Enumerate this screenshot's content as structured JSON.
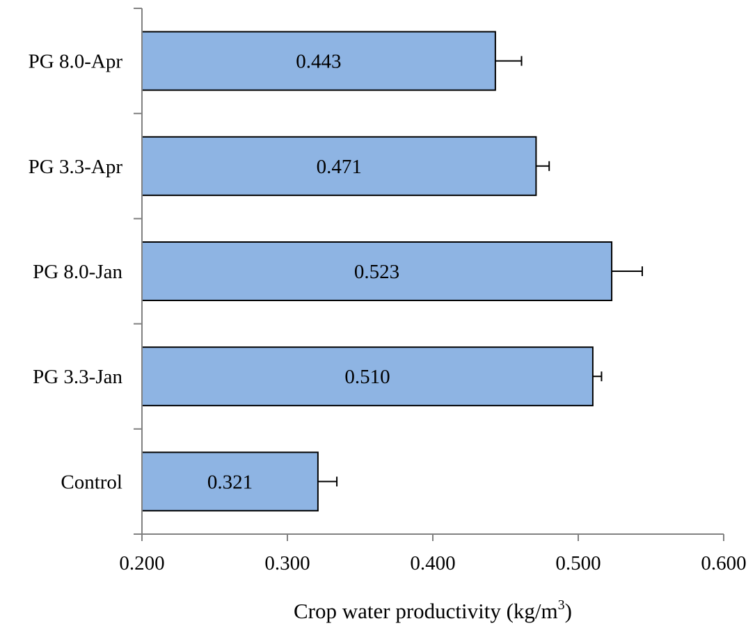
{
  "chart_data": {
    "type": "bar",
    "orientation": "horizontal",
    "title": "",
    "categories": [
      "Control",
      "PG 3.3-Jan",
      "PG 8.0-Jan",
      "PG 3.3-Apr",
      "PG 8.0-Apr"
    ],
    "values": [
      0.321,
      0.51,
      0.523,
      0.471,
      0.443
    ],
    "value_labels": [
      "0.321",
      "0.510",
      "0.523",
      "0.471",
      "0.443"
    ],
    "error_bars": [
      0.013,
      0.006,
      0.021,
      0.009,
      0.018
    ],
    "xlabel": "Crop water productivity (kg/m",
    "xlabel_superscript": "3",
    "xlabel_suffix": ")",
    "ylabel": "",
    "xlim": [
      0.2,
      0.6
    ],
    "xticks": [
      0.2,
      0.3,
      0.4,
      0.5,
      0.6
    ],
    "xtick_labels": [
      "0.200",
      "0.300",
      "0.400",
      "0.500",
      "0.600"
    ],
    "grid": false,
    "legend": "none",
    "colors": {
      "bar_fill": "#8eb4e3",
      "bar_stroke": "#000000",
      "axis": "#808080",
      "error_bar": "#000000"
    }
  }
}
